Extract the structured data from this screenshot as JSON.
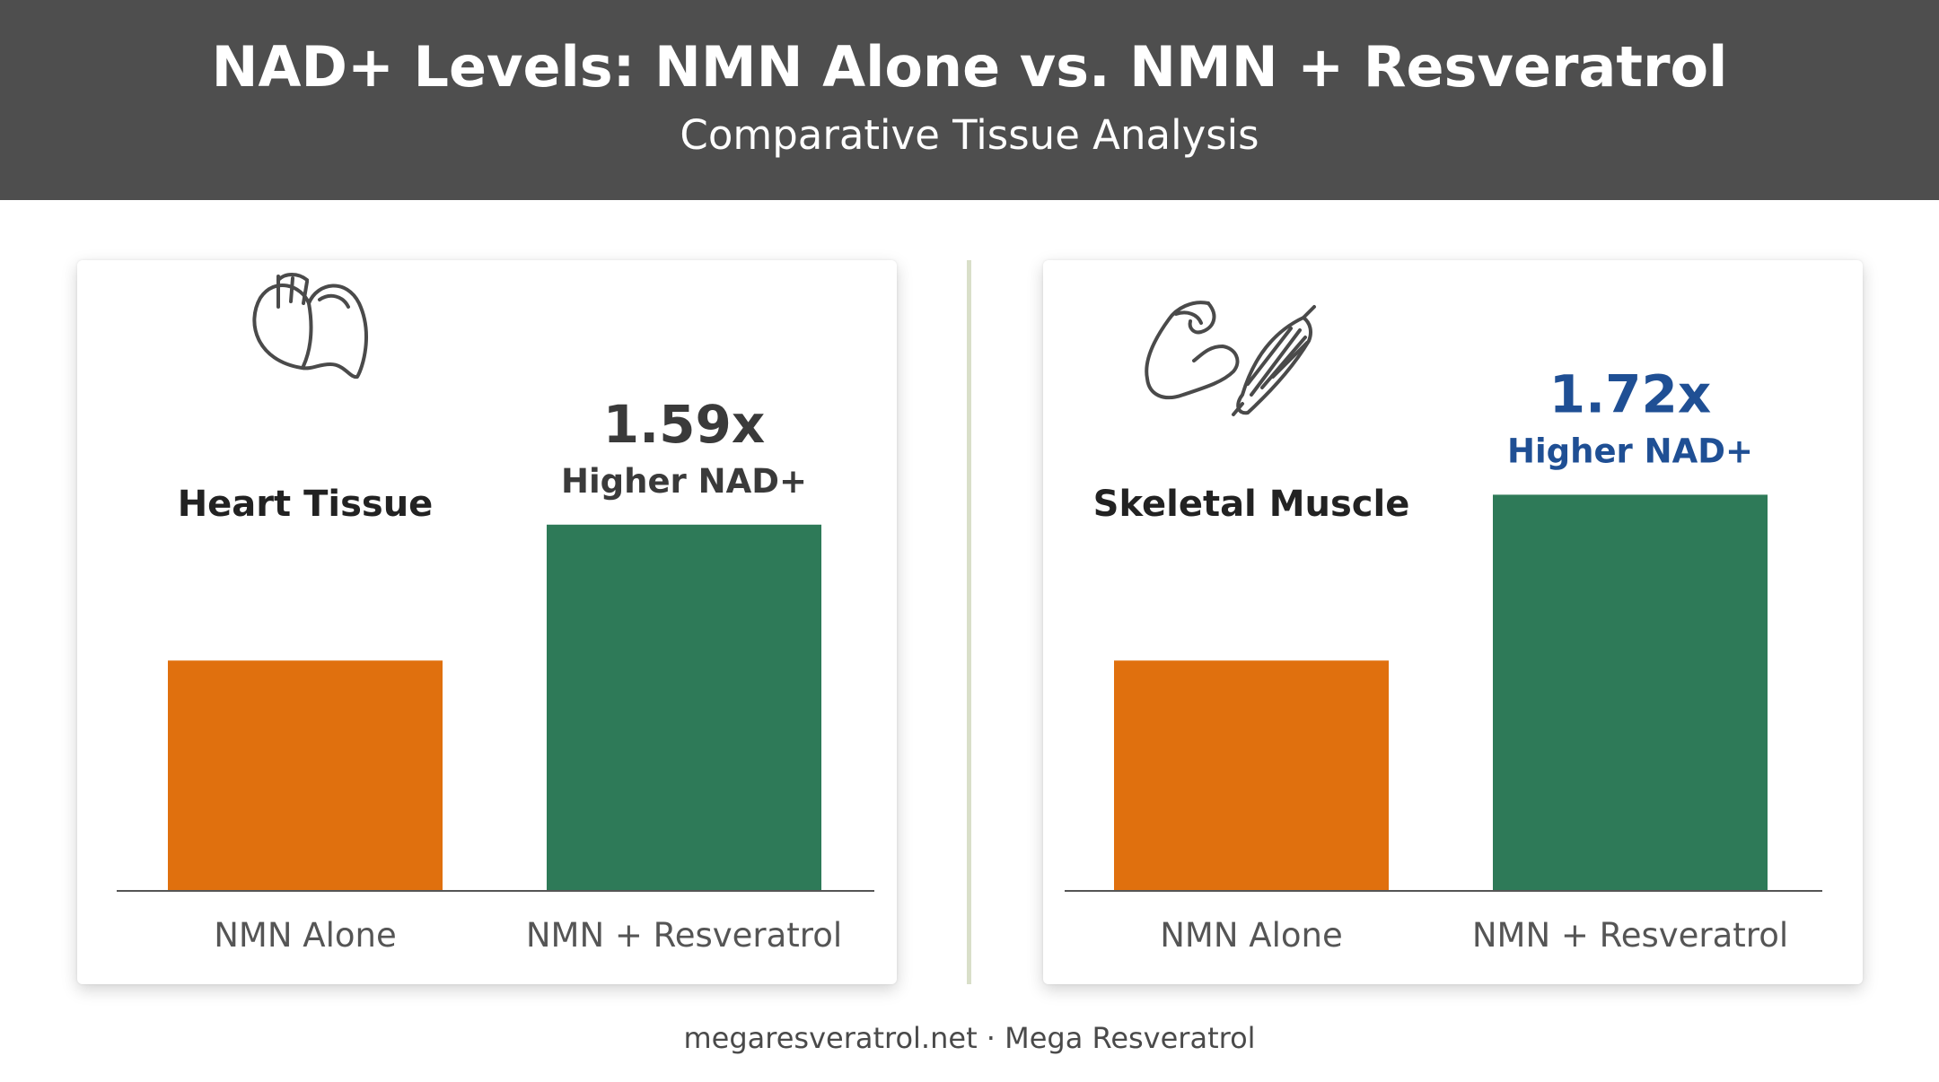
{
  "header": {
    "title": "NAD+ Levels: NMN Alone vs. NMN + Resveratrol",
    "subtitle": "Comparative Tissue Analysis"
  },
  "footer": {
    "text": "megaresveratrol.net · Mega Resveratrol"
  },
  "colors": {
    "header_bg": "#4e4e4e",
    "nmn_alone": "#e0700e",
    "nmn_resveratrol": "#2e7a58",
    "heart_callout": "#3a3a3a",
    "muscle_callout": "#1f4f94"
  },
  "chart_data": [
    {
      "type": "bar",
      "panel_title": "Heart Tissue",
      "icon": "heart-icon",
      "categories": [
        "NMN Alone",
        "NMN + Resveratrol"
      ],
      "values": [
        1.0,
        1.59
      ],
      "callout": {
        "value": "1.59x",
        "label": "Higher NAD+",
        "color": "#3a3a3a"
      },
      "ylim": [
        0,
        2.15
      ]
    },
    {
      "type": "bar",
      "panel_title": "Skeletal Muscle",
      "icon": "muscle-icon",
      "categories": [
        "NMN Alone",
        "NMN + Resveratrol"
      ],
      "values": [
        1.0,
        1.72
      ],
      "callout": {
        "value": "1.72x",
        "label": "Higher NAD+",
        "color": "#1f4f94"
      },
      "ylim": [
        0,
        2.15
      ]
    }
  ]
}
